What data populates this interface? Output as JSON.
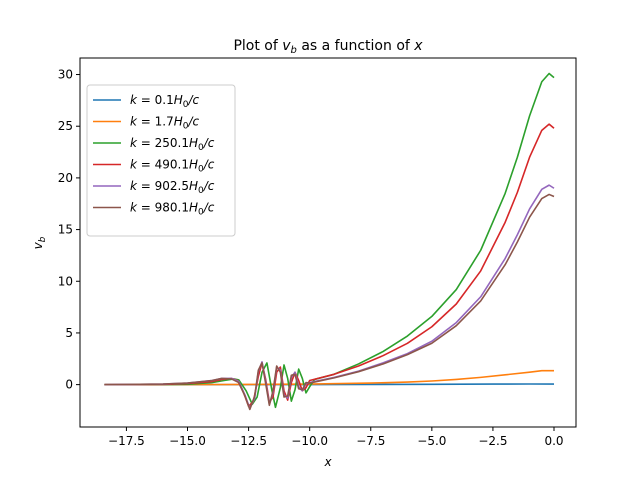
{
  "chart_data": {
    "type": "line",
    "title": "Plot of v_b as a function of x",
    "title_parts": {
      "prefix": "Plot of ",
      "var": "v",
      "sub": "b",
      "middle": " as a function of ",
      "suffix": "x"
    },
    "xlabel": "x",
    "ylabel": {
      "var": "v",
      "sub": "b"
    },
    "xlim": [
      -19.4,
      0.9
    ],
    "ylim": [
      -4.1,
      31.6
    ],
    "xticks": [
      -17.5,
      -15.0,
      -12.5,
      -10.0,
      -7.5,
      -5.0,
      -2.5,
      0.0
    ],
    "xtick_labels": [
      "−17.5",
      "−15.0",
      "−12.5",
      "−10.0",
      "−7.5",
      "−5.0",
      "−2.5",
      "0.0"
    ],
    "yticks": [
      0,
      5,
      10,
      15,
      20,
      25,
      30
    ],
    "ytick_labels": [
      "0",
      "5",
      "10",
      "15",
      "20",
      "25",
      "30"
    ],
    "grid": false,
    "legend_position": "upper-left",
    "series": [
      {
        "name": "k = 0.1H_0/c",
        "label_parts": [
          "k",
          " = 0.1",
          "H",
          "0",
          "/c"
        ],
        "color": "#1f77b4",
        "points": [
          [
            -18.4,
            0
          ],
          [
            -15,
            0
          ],
          [
            -12.5,
            0
          ],
          [
            -10,
            0
          ],
          [
            -7.5,
            0.02
          ],
          [
            -5,
            0.03
          ],
          [
            -2.5,
            0.05
          ],
          [
            -1,
            0.06
          ],
          [
            0,
            0.05
          ]
        ]
      },
      {
        "name": "k = 1.7H_0/c",
        "label_parts": [
          "k",
          " = 1.7",
          "H",
          "0",
          "/c"
        ],
        "color": "#ff7f0e",
        "points": [
          [
            -18.4,
            0
          ],
          [
            -15,
            0
          ],
          [
            -12.5,
            0.02
          ],
          [
            -10,
            0.05
          ],
          [
            -7.5,
            0.15
          ],
          [
            -6,
            0.25
          ],
          [
            -5,
            0.35
          ],
          [
            -4,
            0.5
          ],
          [
            -3,
            0.7
          ],
          [
            -2,
            0.95
          ],
          [
            -1,
            1.2
          ],
          [
            -0.5,
            1.35
          ],
          [
            0,
            1.35
          ]
        ]
      },
      {
        "name": "k = 250.1H_0/c",
        "label_parts": [
          "k",
          " = 250.1",
          "H",
          "0",
          "/c"
        ],
        "color": "#2ca02c",
        "points": [
          [
            -18.4,
            0
          ],
          [
            -16,
            0
          ],
          [
            -15,
            0.03
          ],
          [
            -14,
            0.2
          ],
          [
            -13.5,
            0.4
          ],
          [
            -13.1,
            0.55
          ],
          [
            -12.9,
            0.45
          ],
          [
            -12.6,
            -0.6
          ],
          [
            -12.35,
            -1.9
          ],
          [
            -12.15,
            -1.2
          ],
          [
            -11.95,
            1.2
          ],
          [
            -11.75,
            2.1
          ],
          [
            -11.55,
            -0.5
          ],
          [
            -11.4,
            -2.2
          ],
          [
            -11.2,
            -0.3
          ],
          [
            -11.05,
            1.9
          ],
          [
            -10.9,
            0.6
          ],
          [
            -10.75,
            -1.6
          ],
          [
            -10.6,
            -0.5
          ],
          [
            -10.45,
            1.5
          ],
          [
            -10.3,
            0.6
          ],
          [
            -10.15,
            -0.8
          ],
          [
            -10,
            -0.2
          ],
          [
            -9.8,
            0.5
          ],
          [
            -9,
            1.0
          ],
          [
            -8,
            2.0
          ],
          [
            -7,
            3.2
          ],
          [
            -6,
            4.7
          ],
          [
            -5,
            6.6
          ],
          [
            -4,
            9.2
          ],
          [
            -3,
            13.0
          ],
          [
            -2,
            18.5
          ],
          [
            -1.5,
            22.0
          ],
          [
            -1,
            26.0
          ],
          [
            -0.5,
            29.3
          ],
          [
            -0.2,
            30.1
          ],
          [
            0,
            29.7
          ]
        ]
      },
      {
        "name": "k = 490.1H_0/c",
        "label_parts": [
          "k",
          " = 490.1",
          "H",
          "0",
          "/c"
        ],
        "color": "#d62728",
        "points": [
          [
            -18.4,
            0
          ],
          [
            -16,
            0.02
          ],
          [
            -15,
            0.1
          ],
          [
            -14,
            0.3
          ],
          [
            -13.6,
            0.5
          ],
          [
            -13.2,
            0.6
          ],
          [
            -12.95,
            0.4
          ],
          [
            -12.7,
            -0.8
          ],
          [
            -12.5,
            -2.1
          ],
          [
            -12.3,
            -1.6
          ],
          [
            -12.1,
            0.8
          ],
          [
            -11.95,
            2.1
          ],
          [
            -11.8,
            0.5
          ],
          [
            -11.65,
            -1.7
          ],
          [
            -11.5,
            -1.2
          ],
          [
            -11.35,
            1.2
          ],
          [
            -11.2,
            1.7
          ],
          [
            -11.05,
            -0.6
          ],
          [
            -10.9,
            -1.5
          ],
          [
            -10.75,
            0.2
          ],
          [
            -10.6,
            1.2
          ],
          [
            -10.45,
            0.4
          ],
          [
            -10.3,
            -0.6
          ],
          [
            -10.15,
            -0.3
          ],
          [
            -10,
            0.4
          ],
          [
            -9,
            1.0
          ],
          [
            -8,
            1.8
          ],
          [
            -7,
            2.8
          ],
          [
            -6,
            4.0
          ],
          [
            -5,
            5.6
          ],
          [
            -4,
            7.8
          ],
          [
            -3,
            11.0
          ],
          [
            -2,
            15.7
          ],
          [
            -1.5,
            18.6
          ],
          [
            -1,
            22.0
          ],
          [
            -0.5,
            24.6
          ],
          [
            -0.2,
            25.2
          ],
          [
            0,
            24.8
          ]
        ]
      },
      {
        "name": "k = 902.5H_0/c",
        "label_parts": [
          "k",
          " = 902.5",
          "H",
          "0",
          "/c"
        ],
        "color": "#9467bd",
        "points": [
          [
            -18.4,
            0
          ],
          [
            -16,
            0.05
          ],
          [
            -15,
            0.15
          ],
          [
            -14,
            0.4
          ],
          [
            -13.6,
            0.6
          ],
          [
            -13.2,
            0.6
          ],
          [
            -12.9,
            0.3
          ],
          [
            -12.65,
            -1.0
          ],
          [
            -12.45,
            -2.3
          ],
          [
            -12.25,
            -1.3
          ],
          [
            -12.1,
            1.3
          ],
          [
            -11.95,
            2.2
          ],
          [
            -11.8,
            0.3
          ],
          [
            -11.65,
            -1.9
          ],
          [
            -11.5,
            -0.8
          ],
          [
            -11.35,
            1.7
          ],
          [
            -11.2,
            1.4
          ],
          [
            -11.05,
            -1.0
          ],
          [
            -10.9,
            -1.3
          ],
          [
            -10.75,
            0.7
          ],
          [
            -10.6,
            1.2
          ],
          [
            -10.45,
            -0.2
          ],
          [
            -10.3,
            -0.6
          ],
          [
            -10.15,
            0.1
          ],
          [
            -10,
            0.2
          ],
          [
            -9,
            0.7
          ],
          [
            -8,
            1.3
          ],
          [
            -7,
            2.1
          ],
          [
            -6,
            3.0
          ],
          [
            -5,
            4.2
          ],
          [
            -4,
            6.0
          ],
          [
            -3,
            8.5
          ],
          [
            -2,
            12.2
          ],
          [
            -1.5,
            14.5
          ],
          [
            -1,
            17.0
          ],
          [
            -0.5,
            18.9
          ],
          [
            -0.2,
            19.3
          ],
          [
            0,
            19.0
          ]
        ]
      },
      {
        "name": "k = 980.1H_0/c",
        "label_parts": [
          "k",
          " = 980.1",
          "H",
          "0",
          "/c"
        ],
        "color": "#8c564b",
        "points": [
          [
            -18.4,
            0
          ],
          [
            -16,
            0.05
          ],
          [
            -15,
            0.15
          ],
          [
            -14,
            0.4
          ],
          [
            -13.6,
            0.6
          ],
          [
            -13.2,
            0.55
          ],
          [
            -12.9,
            0.2
          ],
          [
            -12.65,
            -1.1
          ],
          [
            -12.45,
            -2.4
          ],
          [
            -12.25,
            -1.1
          ],
          [
            -12.1,
            1.4
          ],
          [
            -11.95,
            2.1
          ],
          [
            -11.8,
            0.1
          ],
          [
            -11.65,
            -2.0
          ],
          [
            -11.5,
            -0.6
          ],
          [
            -11.35,
            1.8
          ],
          [
            -11.2,
            1.2
          ],
          [
            -11.05,
            -1.2
          ],
          [
            -10.9,
            -1.1
          ],
          [
            -10.75,
            0.9
          ],
          [
            -10.6,
            1.0
          ],
          [
            -10.45,
            -0.4
          ],
          [
            -10.3,
            -0.5
          ],
          [
            -10.15,
            0.2
          ],
          [
            -10,
            0.15
          ],
          [
            -9,
            0.65
          ],
          [
            -8,
            1.25
          ],
          [
            -7,
            2.0
          ],
          [
            -6,
            2.9
          ],
          [
            -5,
            4.0
          ],
          [
            -4,
            5.7
          ],
          [
            -3,
            8.1
          ],
          [
            -2,
            11.6
          ],
          [
            -1.5,
            13.8
          ],
          [
            -1,
            16.2
          ],
          [
            -0.5,
            18.0
          ],
          [
            -0.2,
            18.4
          ],
          [
            0,
            18.2
          ]
        ]
      }
    ]
  }
}
